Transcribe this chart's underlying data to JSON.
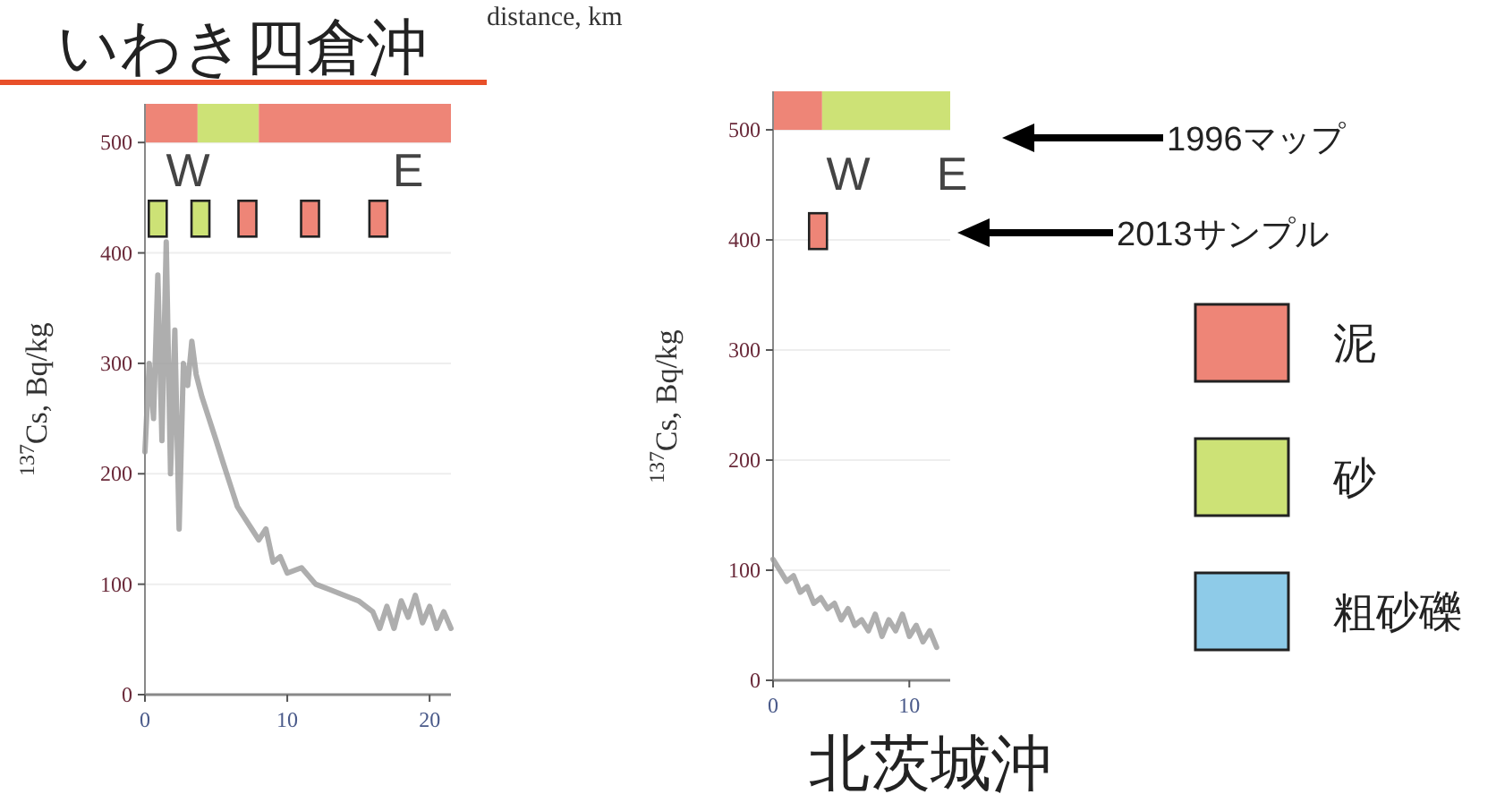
{
  "chart_data": [
    {
      "type": "line",
      "title": "いわき四倉沖",
      "xlabel": "distance, km",
      "ylabel": "$^{137}$Cs, Bq/kg",
      "xlim": [
        0,
        21.5
      ],
      "ylim": [
        0,
        535
      ],
      "xticks": [
        0,
        10,
        20
      ],
      "yticks": [
        0,
        100,
        200,
        300,
        400,
        500
      ],
      "grid": "y",
      "bands": [
        {
          "axis": "x",
          "from": 0,
          "to": 3.7,
          "color": "#ee8577"
        },
        {
          "axis": "x",
          "from": 3.7,
          "to": 8,
          "color": "#cde276"
        },
        {
          "axis": "x",
          "from": 8,
          "to": 21.5,
          "color": "#ee8577"
        }
      ],
      "annotations": [
        "W",
        "E"
      ],
      "series": [
        {
          "type": "line",
          "color": "#9a9a9a",
          "x": [
            0,
            0.3,
            0.6,
            0.9,
            1.2,
            1.5,
            1.8,
            2.1,
            2.4,
            2.7,
            3.0,
            3.3,
            3.6,
            4,
            4.5,
            5,
            5.5,
            6,
            6.5,
            7,
            7.5,
            8,
            8.5,
            9,
            9.5,
            10,
            11,
            12,
            13,
            14,
            15,
            16,
            16.5,
            17,
            17.5,
            18,
            18.5,
            19,
            19.5,
            20,
            20.5,
            21,
            21.5
          ],
          "values": [
            220,
            300,
            250,
            380,
            230,
            410,
            200,
            330,
            150,
            300,
            280,
            320,
            290,
            270,
            250,
            230,
            210,
            190,
            170,
            160,
            150,
            140,
            150,
            120,
            125,
            110,
            115,
            100,
            95,
            90,
            85,
            75,
            60,
            80,
            60,
            85,
            70,
            90,
            65,
            80,
            60,
            75,
            60
          ]
        },
        {
          "type": "scatter",
          "marker": "square",
          "x": [
            0.9,
            3.9,
            7.2,
            11.6,
            16.4
          ],
          "values": [
            431,
            431,
            431,
            431,
            431
          ],
          "colors": [
            "#cde276",
            "#cde276",
            "#ee8577",
            "#ee8577",
            "#ee8577"
          ]
        }
      ]
    },
    {
      "type": "line",
      "title": "北茨城沖",
      "ylabel": "$^{137}$Cs, Bq/kg",
      "xlim": [
        0,
        13
      ],
      "ylim": [
        0,
        535
      ],
      "xticks": [
        0,
        10
      ],
      "yticks": [
        0,
        100,
        200,
        300,
        400,
        500
      ],
      "grid": "y",
      "bands": [
        {
          "axis": "x",
          "from": 0,
          "to": 3.6,
          "color": "#ee8577"
        },
        {
          "axis": "x",
          "from": 3.6,
          "to": 13,
          "color": "#cde276"
        }
      ],
      "annotations": [
        "W",
        "E",
        "1996マップ",
        "2013サンプル"
      ],
      "series": [
        {
          "type": "line",
          "color": "#9a9a9a",
          "x": [
            0,
            0.5,
            1,
            1.5,
            2,
            2.5,
            3,
            3.5,
            4,
            4.5,
            5,
            5.5,
            6,
            6.5,
            7,
            7.5,
            8,
            8.5,
            9,
            9.5,
            10,
            10.5,
            11,
            11.5,
            12
          ],
          "values": [
            110,
            100,
            90,
            95,
            80,
            85,
            70,
            75,
            65,
            70,
            55,
            65,
            50,
            55,
            45,
            60,
            40,
            55,
            45,
            60,
            40,
            50,
            35,
            45,
            30
          ]
        },
        {
          "type": "scatter",
          "marker": "square",
          "x": [
            3.3
          ],
          "values": [
            408
          ],
          "colors": [
            "#ee8577"
          ]
        }
      ]
    },
    {
      "type": "other",
      "categories": [
        "泥",
        "砂",
        "粗砂礫"
      ],
      "colors": [
        "#ee8577",
        "#cde276",
        "#8ecbe8"
      ]
    }
  ]
}
